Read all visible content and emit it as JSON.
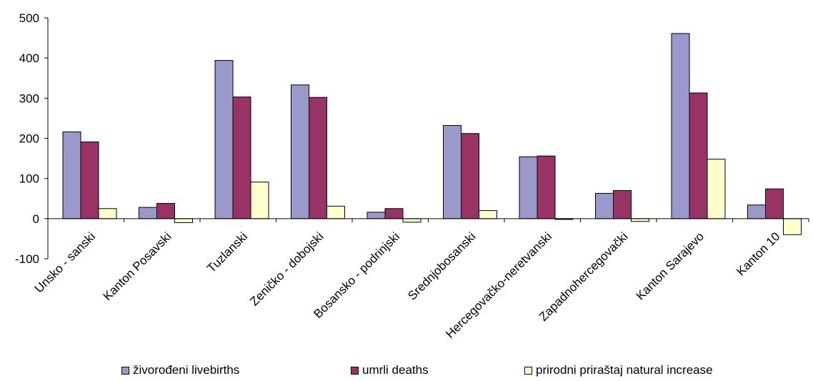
{
  "chart_data": {
    "type": "bar",
    "categories": [
      "Unsko - sanski",
      "Kanton Posavski",
      "Tuzlanski",
      "Zeničko - dobojski",
      "Bosansko - podrinjski",
      "Srednjobosanski",
      "Hercegovačko-neretvanski",
      "Zapadnohercegovački",
      "Kanton Sarajevo",
      "Kanton 10"
    ],
    "series": [
      {
        "name": "živorođeni livebirths",
        "color": "#9999cc",
        "values": [
          216,
          28,
          394,
          333,
          16,
          232,
          154,
          63,
          461,
          34
        ]
      },
      {
        "name": "umrli deaths",
        "color": "#993366",
        "values": [
          191,
          38,
          303,
          302,
          25,
          212,
          156,
          70,
          313,
          74
        ]
      },
      {
        "name": "prirodni priraštaj natural increase",
        "color": "#ffffcc",
        "values": [
          25,
          -10,
          91,
          31,
          -9,
          20,
          -2,
          -7,
          148,
          -40
        ]
      }
    ],
    "ylim": [
      -100,
      500
    ],
    "yticks": [
      500,
      400,
      300,
      200,
      100,
      0,
      -100
    ],
    "legend_position": "bottom"
  }
}
